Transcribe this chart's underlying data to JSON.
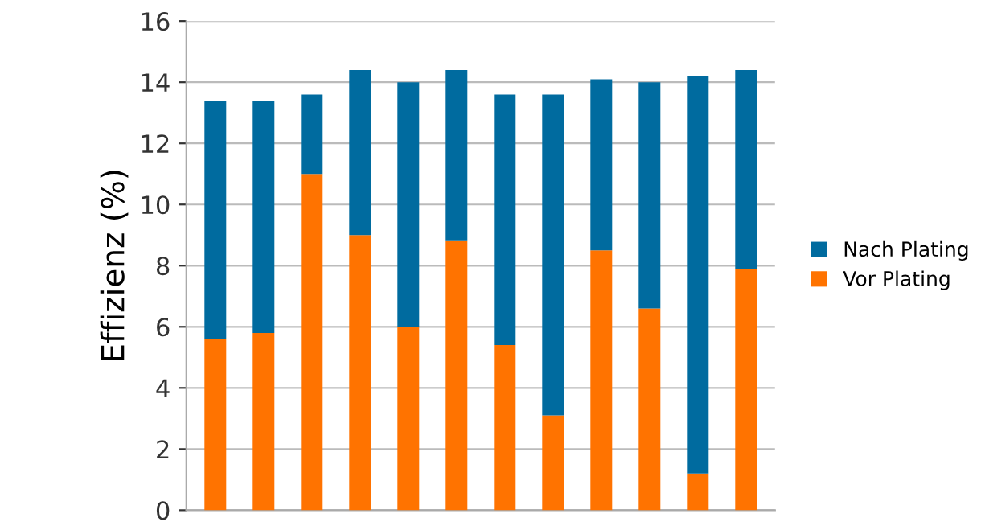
{
  "chart_data": {
    "type": "bar",
    "stacked": true,
    "ylabel": "Effizienz (%)",
    "categories": [
      null,
      null,
      null,
      null,
      null,
      null,
      null,
      null,
      null,
      null,
      null,
      null
    ],
    "series": [
      {
        "name": "Vor Plating",
        "color": "#ff7300",
        "values": [
          5.6,
          5.8,
          11.0,
          9.0,
          6.0,
          8.8,
          5.4,
          3.1,
          8.5,
          6.6,
          1.2,
          7.9
        ]
      },
      {
        "name": "Nach Plating",
        "color": "#006b9f",
        "values": [
          7.8,
          7.6,
          2.6,
          5.4,
          8.0,
          5.6,
          8.2,
          10.5,
          5.6,
          7.4,
          13.0,
          6.5
        ]
      }
    ],
    "ylim": [
      0,
      16
    ],
    "yticks": [
      0,
      2,
      4,
      6,
      8,
      10,
      12,
      14,
      16
    ],
    "grid": "y",
    "legend": "right"
  }
}
